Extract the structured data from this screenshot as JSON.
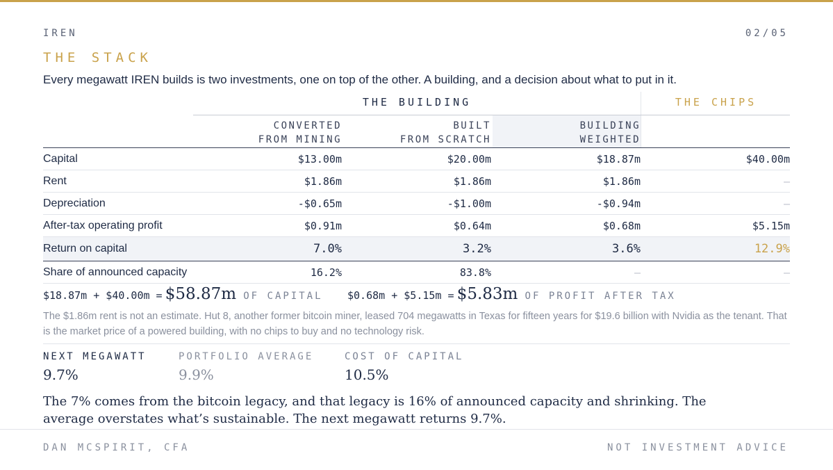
{
  "header": {
    "brand": "IREN",
    "page": "02/05",
    "section_title": "THE STACK",
    "intro": "Every megawatt IREN builds is two investments, one on top of the other. A building, and a decision about what to put in it."
  },
  "table": {
    "group_building": "THE BUILDING",
    "group_chips": "THE CHIPS",
    "col_converted": "CONVERTED\nFROM MINING",
    "col_built": "BUILT\nFROM SCRATCH",
    "col_weighted": "BUILDING\nWEIGHTED",
    "rows": [
      {
        "label": "Capital",
        "converted": "$13.00m",
        "built": "$20.00m",
        "weighted": "$18.87m",
        "chips": "$40.00m"
      },
      {
        "label": "Rent",
        "converted": "$1.86m",
        "built": "$1.86m",
        "weighted": "$1.86m",
        "chips": "—"
      },
      {
        "label": "Depreciation",
        "converted": "-$0.65m",
        "built": "-$1.00m",
        "weighted": "-$0.94m",
        "chips": "—"
      },
      {
        "label": "After-tax operating profit",
        "converted": "$0.91m",
        "built": "$0.64m",
        "weighted": "$0.68m",
        "chips": "$5.15m"
      },
      {
        "label": "Return on capital",
        "converted": "7.0%",
        "built": "3.2%",
        "weighted": "3.6%",
        "chips": "12.9%"
      },
      {
        "label": "Share of announced capacity",
        "converted": "16.2%",
        "built": "83.8%",
        "weighted": "—",
        "chips": "—"
      }
    ]
  },
  "sums": {
    "capital_expr": "$18.87m + $40.00m =",
    "capital_total": "$58.87m",
    "capital_caption": "OF CAPITAL",
    "profit_expr": "$0.68m + $5.15m =",
    "profit_total": "$5.83m",
    "profit_caption": "OF PROFIT AFTER TAX"
  },
  "note": "The $1.86m rent is not an estimate. Hut 8, another former bitcoin miner, leased 704 megawatts in Texas for fifteen years for $19.6 billion with Nvidia as the tenant. That is the market price of a powered building, with no chips to buy and no technology risk.",
  "kpis": [
    {
      "label": "NEXT MEGAWATT",
      "value": "9.7%"
    },
    {
      "label": "PORTFOLIO AVERAGE",
      "value": "9.9%"
    },
    {
      "label": "COST OF CAPITAL",
      "value": "10.5%"
    }
  ],
  "conclusion": "The 7% comes from the bitcoin legacy, and that legacy is 16% of announced capacity and shrinking. The average overstates what’s sustainable. The next megawatt returns 9.7%.",
  "footer": {
    "author": "DAN MCSPIRIT, CFA",
    "disclaimer": "NOT INVESTMENT ADVICE"
  },
  "colors": {
    "accent_gold": "#c9a24b",
    "ink_navy": "#1e2a44",
    "muted": "#8a909e",
    "shade": "#f1f3f7"
  }
}
